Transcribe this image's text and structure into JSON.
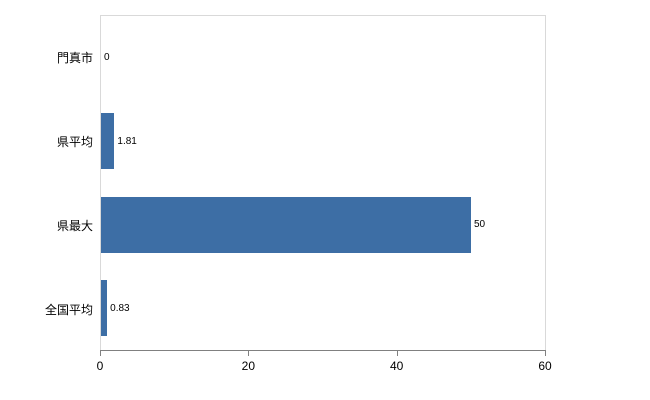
{
  "chart_data": {
    "type": "bar",
    "orientation": "horizontal",
    "title": "",
    "xlabel": "",
    "ylabel": "",
    "categories": [
      "門真市",
      "県平均",
      "県最大",
      "全国平均"
    ],
    "values": [
      0,
      1.81,
      50,
      0.83
    ],
    "value_labels": [
      "0",
      "1.81",
      "50",
      "0.83"
    ],
    "x_ticks": [
      "0",
      "20",
      "40",
      "60"
    ],
    "x_tick_values": [
      0,
      20,
      40,
      60
    ],
    "xlim": [
      0,
      60
    ],
    "grid": false,
    "legend_position": "none",
    "bar_color": "#3d6ea5",
    "frame_color": "#d9d9d9",
    "axis_color": "#808080"
  }
}
